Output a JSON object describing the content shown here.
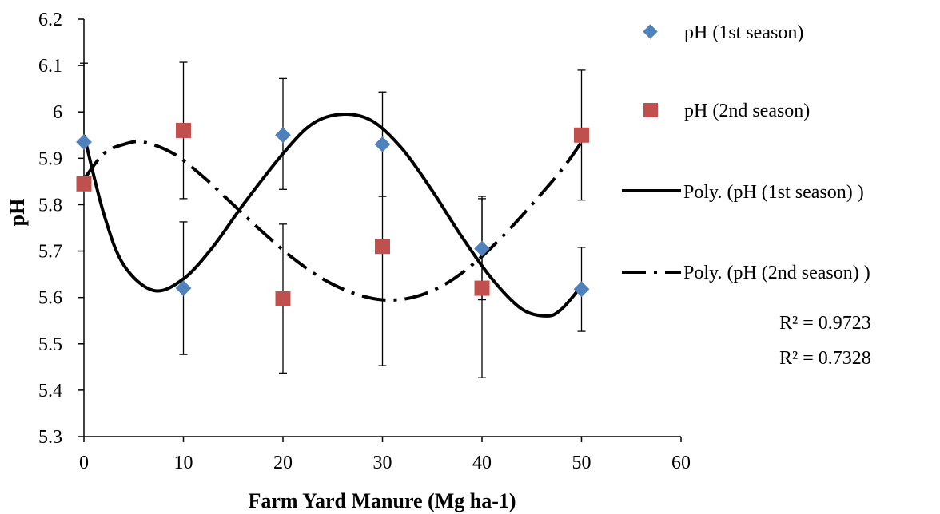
{
  "chart_data": {
    "type": "scatter",
    "xlabel": "Farm Yard Manure (Mg ha-1)",
    "ylabel": "pH",
    "xlim": [
      0,
      60
    ],
    "ylim": [
      5.3,
      6.2
    ],
    "xticks": [
      0,
      10,
      20,
      30,
      40,
      50,
      60
    ],
    "yticks": [
      5.3,
      5.4,
      5.5,
      5.6,
      5.7,
      5.8,
      5.9,
      6.0,
      6.1,
      6.2
    ],
    "xtick_labels": [
      "0",
      "10",
      "20",
      "30",
      "40",
      "50",
      "60"
    ],
    "ytick_labels": [
      "5.3",
      "5.4",
      "5.5",
      "5.6",
      "5.7",
      "5.8",
      "5.9",
      "6",
      "6.1",
      "6.2"
    ],
    "grid": false,
    "legend_position": "right",
    "series": [
      {
        "name": "pH (1st season)",
        "marker": "diamond",
        "color": "#4F81BD",
        "x": [
          0,
          10,
          20,
          30,
          40,
          50
        ],
        "y": [
          5.935,
          5.62,
          5.95,
          5.93,
          5.705,
          5.618
        ],
        "err_low": [
          5.935,
          5.477,
          5.833,
          5.818,
          5.595,
          5.527
        ],
        "err_high": [
          6.105,
          5.763,
          6.072,
          6.043,
          5.818,
          5.708
        ]
      },
      {
        "name": "pH (2nd season)",
        "marker": "square",
        "color": "#C0504D",
        "x": [
          0,
          10,
          20,
          30,
          40,
          50
        ],
        "y": [
          5.845,
          5.96,
          5.597,
          5.71,
          5.62,
          5.95
        ],
        "err_low": [
          5.845,
          5.813,
          5.437,
          5.453,
          5.427,
          5.81
        ],
        "err_high": [
          5.845,
          6.107,
          5.758,
          5.818,
          5.813,
          6.09
        ]
      }
    ],
    "trendlines": [
      {
        "name": "Poly. (pH (1st season) )",
        "style": "solid",
        "color": "#000000",
        "x": [
          0,
          2,
          4,
          7,
          10,
          13,
          16,
          20,
          23,
          26,
          29,
          32,
          35,
          38,
          41,
          44,
          46.5,
          48,
          50
        ],
        "y": [
          5.95,
          5.78,
          5.67,
          5.615,
          5.64,
          5.71,
          5.8,
          5.91,
          5.975,
          5.995,
          5.98,
          5.92,
          5.83,
          5.73,
          5.64,
          5.575,
          5.56,
          5.575,
          5.625
        ]
      },
      {
        "name": "Poly. (pH (2nd season) )",
        "style": "dashdot",
        "color": "#000000",
        "x": [
          0,
          2,
          4,
          6,
          9,
          12,
          15,
          18,
          21,
          24,
          27,
          30,
          33,
          36,
          39,
          42,
          45,
          48,
          50
        ],
        "y": [
          5.855,
          5.91,
          5.93,
          5.935,
          5.91,
          5.86,
          5.8,
          5.74,
          5.685,
          5.64,
          5.61,
          5.595,
          5.6,
          5.625,
          5.67,
          5.73,
          5.8,
          5.875,
          5.935
        ]
      }
    ],
    "r_squared": [
      "R² = 0.9723",
      "R² = 0.7328"
    ]
  }
}
